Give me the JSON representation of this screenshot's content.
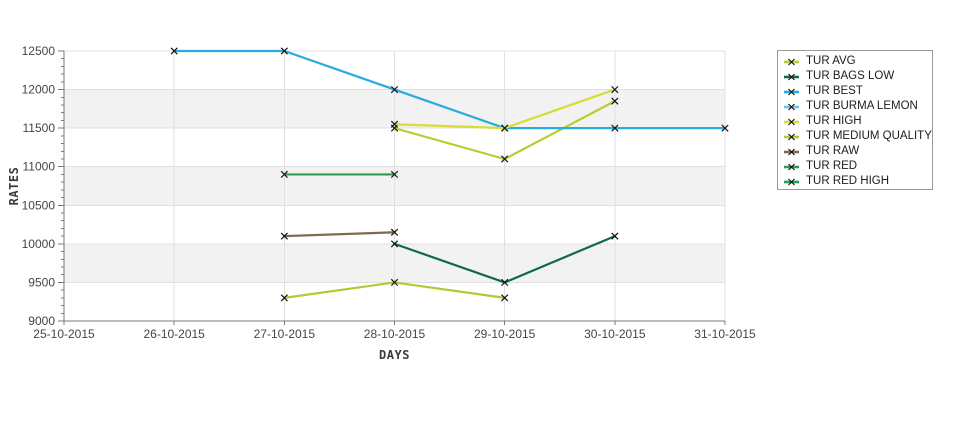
{
  "chart_data": {
    "type": "line",
    "title": "",
    "xlabel": "DAYS",
    "ylabel": "RATES",
    "x_categories": [
      "25-10-2015",
      "26-10-2015",
      "27-10-2015",
      "28-10-2015",
      "29-10-2015",
      "30-10-2015",
      "31-10-2015"
    ],
    "y_ticks": [
      9000,
      9500,
      10000,
      10500,
      11000,
      11500,
      12000,
      12500
    ],
    "ylim": [
      9000,
      12500
    ],
    "y_minor_step": 100,
    "grid": true,
    "alternating_bands": true,
    "legend_position": "right",
    "marker": "x",
    "series": [
      {
        "name": "TUR AVG",
        "color": "#b9cc30",
        "points": [
          [
            "28-10-2015",
            11500
          ],
          [
            "29-10-2015",
            11100
          ],
          [
            "30-10-2015",
            11850
          ]
        ]
      },
      {
        "name": "TUR BAGS LOW",
        "color": "#0e6b45",
        "points": [
          [
            "28-10-2015",
            10000
          ],
          [
            "29-10-2015",
            9500
          ],
          [
            "30-10-2015",
            10100
          ]
        ]
      },
      {
        "name": "TUR BEST",
        "color": "#29abdf",
        "points": [
          [
            "26-10-2015",
            12500
          ],
          [
            "27-10-2015",
            12500
          ],
          [
            "28-10-2015",
            12000
          ],
          [
            "29-10-2015",
            11500
          ],
          [
            "30-10-2015",
            11500
          ],
          [
            "31-10-2015",
            11500
          ]
        ]
      },
      {
        "name": "TUR BURMA LEMON",
        "color": "#6fc2e8",
        "points": []
      },
      {
        "name": "TUR HIGH",
        "color": "#d7dc38",
        "points": [
          [
            "28-10-2015",
            11550
          ],
          [
            "29-10-2015",
            11500
          ],
          [
            "30-10-2015",
            12000
          ]
        ]
      },
      {
        "name": "TUR MEDIUM QUALITY",
        "color": "#a9cc38",
        "points": [
          [
            "27-10-2015",
            9300
          ],
          [
            "28-10-2015",
            9500
          ],
          [
            "29-10-2015",
            9300
          ]
        ]
      },
      {
        "name": "TUR RAW",
        "color": "#7f6b4c",
        "points": [
          [
            "27-10-2015",
            10100
          ],
          [
            "28-10-2015",
            10150
          ]
        ]
      },
      {
        "name": "TUR RED",
        "color": "#2f9b51",
        "points": [
          [
            "27-10-2015",
            10900
          ],
          [
            "28-10-2015",
            10900
          ]
        ]
      },
      {
        "name": "TUR RED HIGH",
        "color": "#15a74e",
        "points": []
      }
    ],
    "colors": {
      "band_fill": "#f2f2f2",
      "gridline": "#e0e0e0",
      "plot_border": "#d9d9d9",
      "axis_line": "#7a7a7a",
      "tick_text": "#454545",
      "marker": "#141414",
      "legend_border": "#9a9a9a"
    }
  }
}
